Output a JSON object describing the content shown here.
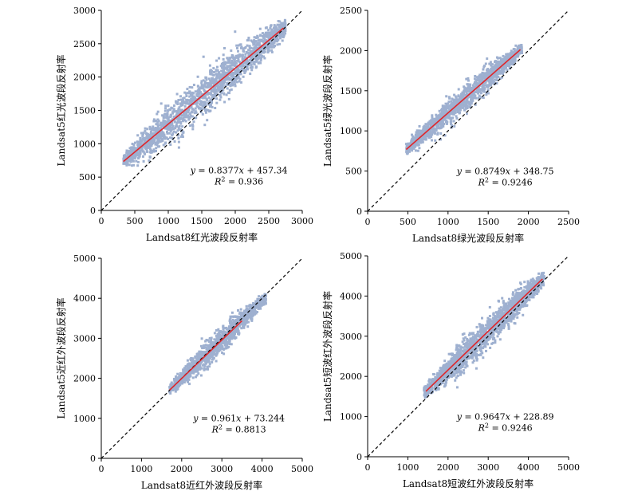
{
  "chart_data": [
    {
      "type": "scatter",
      "xlabel": "Landsat8红光波段反射率",
      "ylabel": "Landsat5红光波段反射率",
      "xlim": [
        0,
        3000
      ],
      "ylim": [
        0,
        3000
      ],
      "xticks": [
        0,
        500,
        1000,
        1500,
        2000,
        2500,
        3000
      ],
      "yticks": [
        0,
        500,
        1000,
        1500,
        2000,
        2500,
        3000
      ],
      "fit": {
        "slope": 0.8377,
        "intercept": 457.34,
        "x_range": [
          330,
          2720
        ],
        "equation": "y = 0.8377x + 457.34",
        "r2": "R2 = 0.936"
      },
      "identity_line": true,
      "cloud": {
        "x_range": [
          330,
          2750
        ],
        "spread": 230,
        "count": 1800,
        "seed": 11
      },
      "colors": {
        "points": "#9eb0d0",
        "fit": "#e0262a",
        "identity": "#000000"
      }
    },
    {
      "type": "scatter",
      "xlabel": "Landsat8绿光波段反射率",
      "ylabel": "Landsat5绿光波段反射率",
      "xlim": [
        0,
        2500
      ],
      "ylim": [
        0,
        2500
      ],
      "xticks": [
        0,
        500,
        1000,
        1500,
        2000,
        2500
      ],
      "yticks": [
        0,
        500,
        1000,
        1500,
        2000,
        2500
      ],
      "fit": {
        "slope": 0.8749,
        "intercept": 348.75,
        "x_range": [
          480,
          1900
        ],
        "equation": "y = 0.8749x + 348.75",
        "r2": "R2 = 0.9246"
      },
      "identity_line": true,
      "cloud": {
        "x_range": [
          480,
          1920
        ],
        "spread": 120,
        "count": 1500,
        "seed": 23
      },
      "colors": {
        "points": "#9eb0d0",
        "fit": "#e0262a",
        "identity": "#000000"
      }
    },
    {
      "type": "scatter",
      "xlabel": "Landsat8近红外波段反射率",
      "ylabel": "Landsat5近红外波段反射率",
      "xlim": [
        0,
        5000
      ],
      "ylim": [
        0,
        5000
      ],
      "xticks": [
        0,
        1000,
        2000,
        3000,
        4000,
        5000
      ],
      "yticks": [
        0,
        1000,
        2000,
        3000,
        4000,
        5000
      ],
      "fit": {
        "slope": 0.961,
        "intercept": 73.244,
        "x_range": [
          1700,
          3500
        ],
        "equation": "y = 0.961x + 73.244",
        "r2": "R2 = 0.8813"
      },
      "identity_line": true,
      "cloud": {
        "x_range": [
          1700,
          4100
        ],
        "spread": 230,
        "count": 1300,
        "seed": 37
      },
      "colors": {
        "points": "#9eb0d0",
        "fit": "#e0262a",
        "identity": "#000000"
      }
    },
    {
      "type": "scatter",
      "xlabel": "Landsat8短波红外波段反射率",
      "ylabel": "Landsat5短波红外波段反射率",
      "xlim": [
        0,
        5000
      ],
      "ylim": [
        0,
        5000
      ],
      "xticks": [
        0,
        1000,
        2000,
        3000,
        4000,
        5000
      ],
      "yticks": [
        0,
        1000,
        2000,
        3000,
        4000,
        5000
      ],
      "fit": {
        "slope": 0.9647,
        "intercept": 228.89,
        "x_range": [
          1450,
          4350
        ],
        "equation": "y = 0.9647x + 228.89",
        "r2": "R2 = 0.9246"
      },
      "identity_line": true,
      "cloud": {
        "x_range": [
          1400,
          4400
        ],
        "spread": 280,
        "count": 1800,
        "seed": 53
      },
      "colors": {
        "points": "#9eb0d0",
        "fit": "#e0262a",
        "identity": "#000000"
      }
    }
  ]
}
